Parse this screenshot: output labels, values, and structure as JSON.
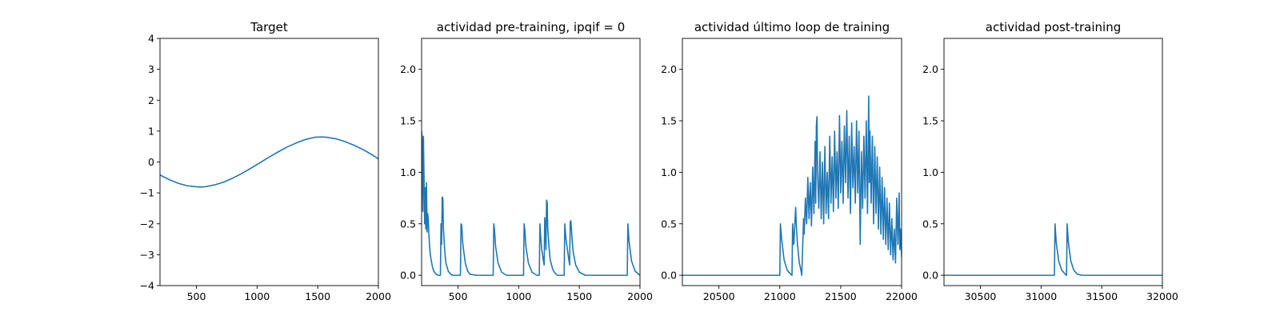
{
  "chart_data": [
    {
      "type": "line",
      "title": "Target",
      "xlabel": "",
      "ylabel": "",
      "xlim": [
        200,
        2000
      ],
      "ylim": [
        -4,
        4
      ],
      "xticks": [
        500,
        1000,
        1500,
        2000
      ],
      "yticks": [
        -4,
        -3,
        -2,
        -1,
        0,
        1,
        2,
        3,
        4
      ],
      "color": "#1f77b4",
      "series": [
        {
          "x": [
            200,
            275,
            350,
            425,
            500,
            530,
            575,
            650,
            725,
            800,
            875,
            950,
            1025,
            1100,
            1175,
            1250,
            1325,
            1400,
            1475,
            1530,
            1575,
            1650,
            1725,
            1800,
            1875,
            1950,
            2000
          ],
          "y": [
            -0.42,
            -0.57,
            -0.69,
            -0.77,
            -0.8,
            -0.81,
            -0.8,
            -0.74,
            -0.65,
            -0.52,
            -0.37,
            -0.2,
            -0.02,
            0.16,
            0.33,
            0.49,
            0.62,
            0.73,
            0.8,
            0.81,
            0.8,
            0.75,
            0.66,
            0.54,
            0.4,
            0.23,
            0.1
          ]
        }
      ]
    },
    {
      "type": "line",
      "title": "actividad pre-training, ipqif = 0",
      "xlabel": "",
      "ylabel": "",
      "xlim": [
        200,
        2000
      ],
      "ylim": [
        -0.1,
        2.3
      ],
      "xticks": [
        500,
        1000,
        1500,
        2000
      ],
      "yticks": [
        0.0,
        0.5,
        1.0,
        1.5,
        2.0
      ],
      "color": "#1f77b4",
      "series": [
        {
          "x": [
            200,
            205,
            210,
            215,
            220,
            225,
            230,
            235,
            240,
            245,
            250,
            255,
            260,
            265,
            270,
            280,
            290,
            300,
            320,
            340,
            355,
            360,
            365,
            370,
            375,
            380,
            390,
            400,
            420,
            440,
            460,
            480,
            500,
            520,
            525,
            530,
            540,
            560,
            580,
            600,
            650,
            700,
            750,
            790,
            795,
            800,
            810,
            830,
            860,
            900,
            950,
            1000,
            1040,
            1045,
            1050,
            1060,
            1080,
            1110,
            1150,
            1170,
            1175,
            1180,
            1190,
            1210,
            1215,
            1220,
            1225,
            1230,
            1235,
            1240,
            1250,
            1260,
            1280,
            1300,
            1320,
            1340,
            1360,
            1375,
            1380,
            1390,
            1410,
            1420,
            1425,
            1430,
            1435,
            1440,
            1450,
            1470,
            1500,
            1550,
            1600,
            1700,
            1800,
            1880,
            1895,
            1900,
            1910,
            1930,
            1960,
            2000
          ],
          "y": [
            1.4,
            1.3,
            0.62,
            1.35,
            0.95,
            0.5,
            0.85,
            0.45,
            0.9,
            0.42,
            0.6,
            0.55,
            0.4,
            0.3,
            0.22,
            0.14,
            0.08,
            0.04,
            0.01,
            0.0,
            0.0,
            0.5,
            0.3,
            0.76,
            0.75,
            0.45,
            0.25,
            0.12,
            0.04,
            0.01,
            0.0,
            0.0,
            0.0,
            0.0,
            0.5,
            0.49,
            0.3,
            0.12,
            0.04,
            0.01,
            0.0,
            0.0,
            0.0,
            0.0,
            0.5,
            0.45,
            0.28,
            0.12,
            0.03,
            0.0,
            0.0,
            0.0,
            0.0,
            0.5,
            0.45,
            0.28,
            0.12,
            0.03,
            0.0,
            0.0,
            0.5,
            0.4,
            0.25,
            0.1,
            0.56,
            0.45,
            0.25,
            0.73,
            0.71,
            0.45,
            0.28,
            0.15,
            0.06,
            0.02,
            0.0,
            0.0,
            0.0,
            0.0,
            0.5,
            0.35,
            0.18,
            0.1,
            0.52,
            0.53,
            0.45,
            0.35,
            0.22,
            0.1,
            0.03,
            0.0,
            0.0,
            0.0,
            0.0,
            0.0,
            0.0,
            0.5,
            0.33,
            0.14,
            0.04,
            0.0
          ]
        }
      ]
    },
    {
      "type": "line",
      "title": "actividad último loop de training",
      "xlabel": "",
      "ylabel": "",
      "xlim": [
        20200,
        22000
      ],
      "ylim": [
        -0.1,
        2.3
      ],
      "xticks": [
        20500,
        21000,
        21500,
        22000
      ],
      "yticks": [
        0.0,
        0.5,
        1.0,
        1.5,
        2.0
      ],
      "color": "#1f77b4",
      "series": [
        {
          "x": [
            20200,
            20600,
            21000,
            21005,
            21015,
            21035,
            21060,
            21090,
            21100,
            21105,
            21115,
            21130,
            21135,
            21145,
            21160,
            21175,
            21180,
            21195,
            21200,
            21210,
            21220,
            21230,
            21240,
            21250,
            21260,
            21270,
            21280,
            21290,
            21295,
            21300,
            21305,
            21310,
            21320,
            21330,
            21340,
            21350,
            21360,
            21370,
            21380,
            21390,
            21400,
            21410,
            21420,
            21430,
            21440,
            21450,
            21460,
            21470,
            21480,
            21490,
            21500,
            21510,
            21520,
            21530,
            21540,
            21550,
            21560,
            21570,
            21580,
            21590,
            21600,
            21610,
            21620,
            21630,
            21640,
            21650,
            21660,
            21670,
            21680,
            21690,
            21700,
            21710,
            21720,
            21730,
            21735,
            21740,
            21750,
            21760,
            21770,
            21780,
            21790,
            21800,
            21810,
            21820,
            21830,
            21840,
            21850,
            21860,
            21870,
            21880,
            21890,
            21900,
            21910,
            21920,
            21930,
            21940,
            21950,
            21960,
            21970,
            21980,
            21985,
            21990,
            22000
          ],
          "y": [
            0.0,
            0.0,
            0.0,
            0.5,
            0.35,
            0.15,
            0.05,
            0.01,
            0.0,
            0.5,
            0.3,
            0.66,
            0.5,
            0.3,
            0.12,
            0.04,
            0.0,
            0.55,
            0.4,
            0.75,
            0.5,
            0.95,
            0.55,
            0.9,
            0.48,
            1.05,
            0.6,
            1.3,
            0.7,
            1.45,
            1.54,
            1.0,
            0.65,
            1.2,
            0.55,
            1.1,
            0.5,
            1.25,
            0.6,
            1.0,
            0.55,
            1.35,
            0.7,
            1.15,
            0.62,
            1.4,
            0.75,
            1.2,
            0.65,
            1.55,
            0.8,
            1.3,
            0.7,
            1.45,
            0.9,
            1.6,
            0.75,
            1.35,
            0.6,
            1.48,
            0.85,
            1.25,
            0.7,
            1.5,
            0.8,
            1.4,
            0.3,
            1.2,
            0.65,
            1.35,
            0.75,
            1.5,
            0.6,
            1.74,
            0.9,
            1.4,
            0.7,
            1.35,
            0.5,
            1.25,
            0.6,
            1.15,
            0.45,
            1.05,
            0.4,
            0.95,
            0.35,
            0.85,
            0.3,
            0.75,
            0.25,
            0.7,
            0.2,
            0.55,
            0.15,
            0.45,
            0.12,
            0.75,
            0.3,
            0.8,
            0.25,
            0.45,
            0.18
          ]
        }
      ]
    },
    {
      "type": "line",
      "title": "actividad post-training",
      "xlabel": "",
      "ylabel": "",
      "xlim": [
        30200,
        32000
      ],
      "ylim": [
        -0.1,
        2.3
      ],
      "xticks": [
        30500,
        31000,
        31500,
        32000
      ],
      "yticks": [
        0.0,
        0.5,
        1.0,
        1.5,
        2.0
      ],
      "color": "#1f77b4",
      "series": [
        {
          "x": [
            30200,
            30800,
            31110,
            31115,
            31125,
            31145,
            31170,
            31200,
            31210,
            31215,
            31225,
            31245,
            31270,
            31300,
            31340,
            31500,
            32000
          ],
          "y": [
            0.0,
            0.0,
            0.0,
            0.5,
            0.32,
            0.14,
            0.05,
            0.01,
            0.0,
            0.5,
            0.32,
            0.14,
            0.05,
            0.01,
            0.0,
            0.0,
            0.0
          ]
        }
      ]
    }
  ]
}
